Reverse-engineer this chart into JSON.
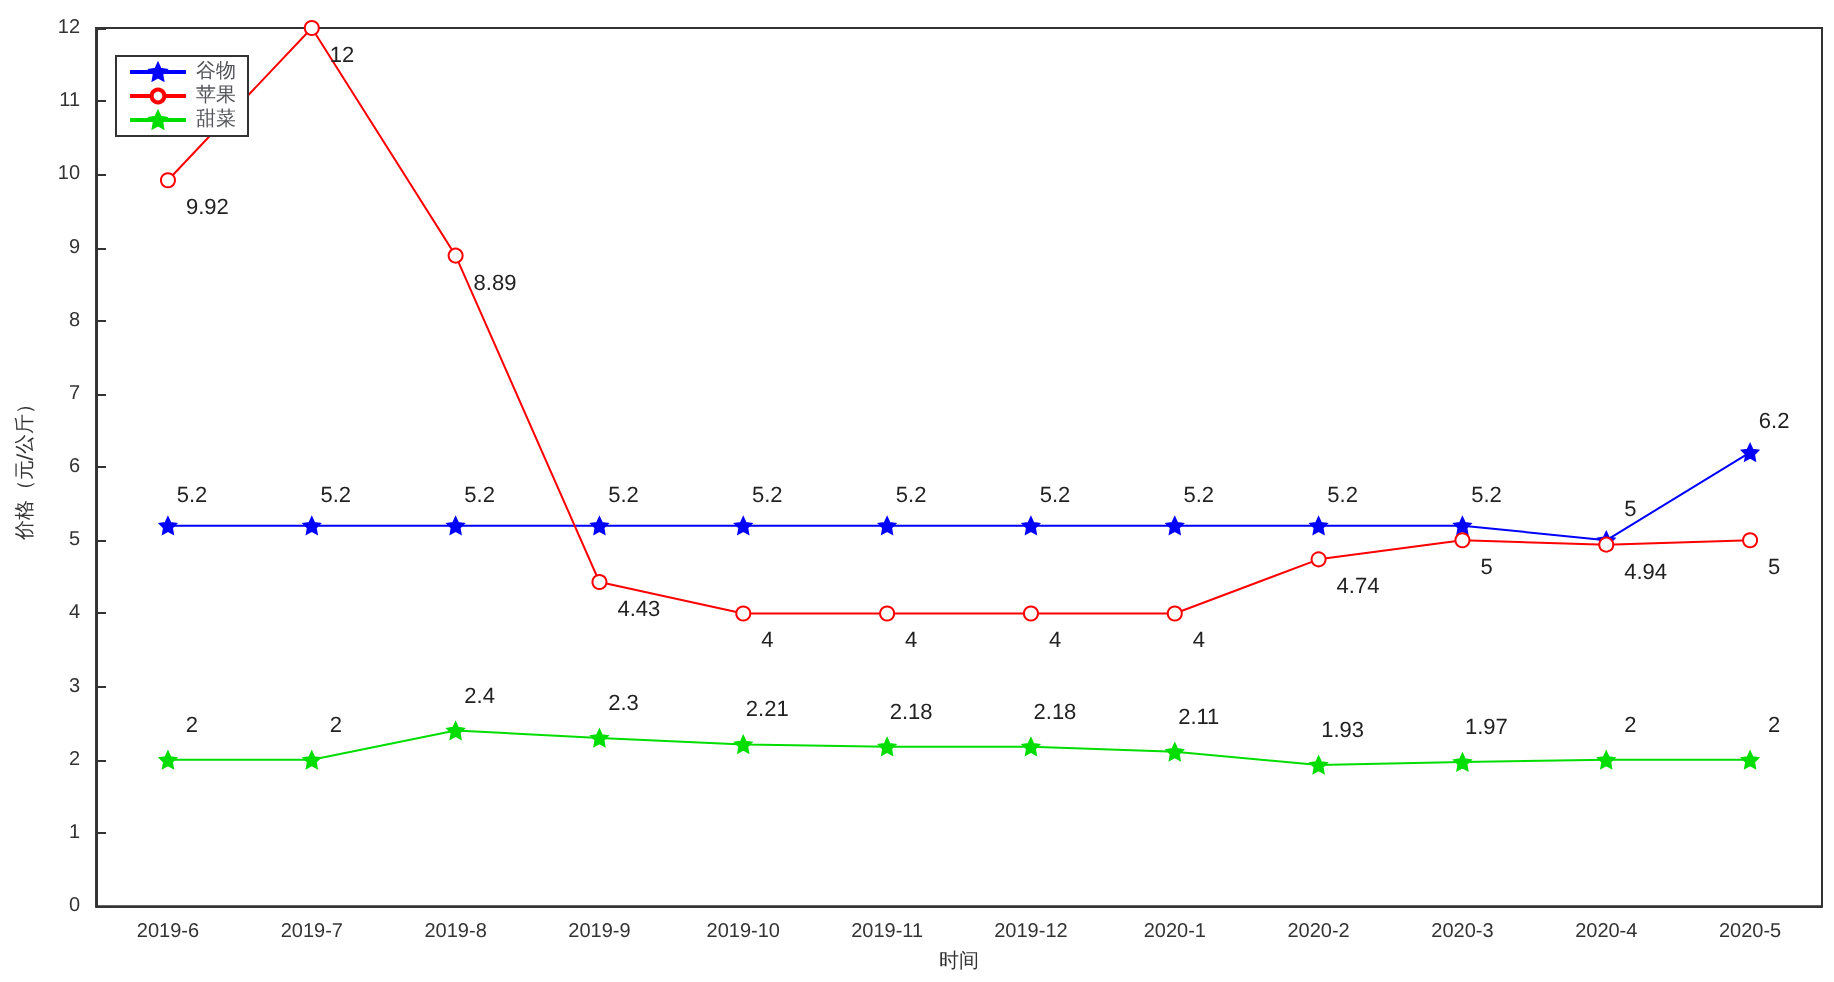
{
  "chart_data": {
    "type": "line",
    "xlabel": "时间",
    "ylabel": "价格（元/公斤）",
    "categories": [
      "2019-6",
      "2019-7",
      "2019-8",
      "2019-9",
      "2019-10",
      "2019-11",
      "2019-12",
      "2020-1",
      "2020-2",
      "2020-3",
      "2020-4",
      "2020-5"
    ],
    "series": [
      {
        "name": "谷物",
        "color": "#0000ff",
        "marker": "star",
        "values": [
          5.2,
          5.2,
          5.2,
          5.2,
          5.2,
          5.2,
          5.2,
          5.2,
          5.2,
          5.2,
          5,
          6.2
        ]
      },
      {
        "name": "苹果",
        "color": "#ff0000",
        "marker": "circle",
        "values": [
          9.92,
          12,
          8.89,
          4.43,
          4,
          4,
          4,
          4,
          4.74,
          5,
          4.94,
          5
        ]
      },
      {
        "name": "甜菜",
        "color": "#00dd00",
        "marker": "star",
        "values": [
          2,
          2,
          2.4,
          2.3,
          2.21,
          2.18,
          2.18,
          2.11,
          1.93,
          1.97,
          2,
          2
        ]
      }
    ],
    "ylim": [
      0,
      12
    ],
    "yticks": [
      0,
      1,
      2,
      3,
      4,
      5,
      6,
      7,
      8,
      9,
      10,
      11,
      12
    ],
    "data_labels": true,
    "legend": "top left",
    "grid": false,
    "line_style": "solid"
  }
}
